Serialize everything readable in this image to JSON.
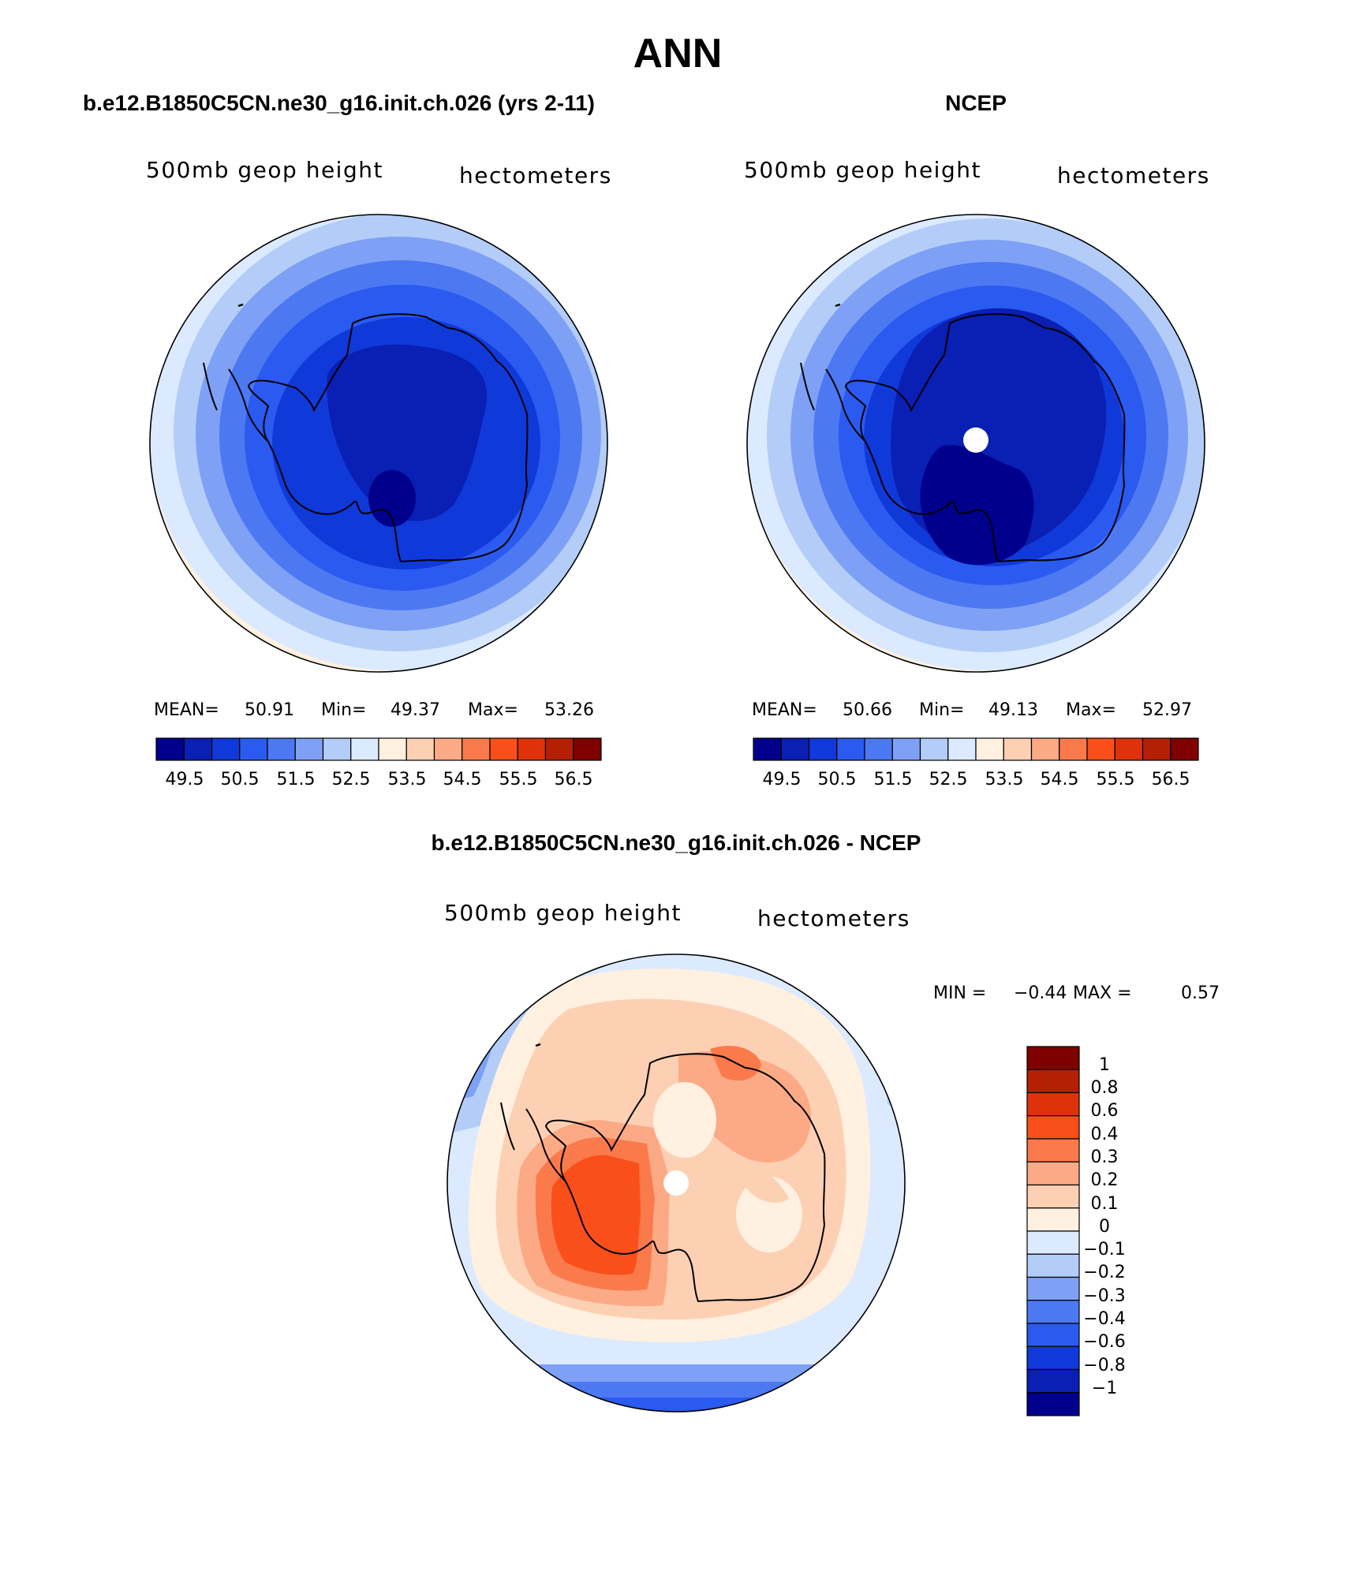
{
  "title": "ANN",
  "colors": {
    "abs_palette": [
      "#00008c",
      "#0a1fb3",
      "#1039d9",
      "#2a5af0",
      "#4c78f2",
      "#7ea1f5",
      "#b3cdf8",
      "#dceaff",
      "#fff0e0",
      "#fdd0b3",
      "#fca985",
      "#fa7a4b",
      "#fa4f1a",
      "#e0320a",
      "#b52005",
      "#800000"
    ],
    "diff_palette": [
      "#00008c",
      "#0a1fb3",
      "#1039d9",
      "#2a5af0",
      "#4c78f2",
      "#7ea1f5",
      "#b3cdf8",
      "#dceaff",
      "#fff0e0",
      "#fdd0b3",
      "#fca985",
      "#fa7a4b",
      "#fa4f1a",
      "#e0320a",
      "#b52005",
      "#800000"
    ]
  },
  "panels": [
    {
      "id": "model",
      "header": "b.e12.B1850C5CN.ne30_g16.init.ch.026 (yrs 2-11)",
      "variable": "500mb geop height",
      "units": "hectometers",
      "stats": {
        "mean_label": "MEAN=",
        "mean": "50.91",
        "min_label": "Min=",
        "min": "49.37",
        "max_label": "Max=",
        "max": "53.26"
      },
      "colorbar_labels": [
        "49.5",
        "50.5",
        "51.5",
        "52.5",
        "53.5",
        "54.5",
        "55.5",
        "56.5"
      ]
    },
    {
      "id": "obs",
      "header": "NCEP",
      "variable": "500mb geop height",
      "units": "hectometers",
      "stats": {
        "mean_label": "MEAN=",
        "mean": "50.66",
        "min_label": "Min=",
        "min": "49.13",
        "max_label": "Max=",
        "max": "52.97"
      },
      "colorbar_labels": [
        "49.5",
        "50.5",
        "51.5",
        "52.5",
        "53.5",
        "54.5",
        "55.5",
        "56.5"
      ]
    }
  ],
  "diff": {
    "header": "b.e12.B1850C5CN.ne30_g16.init.ch.026 - NCEP",
    "variable": "500mb geop height",
    "units": "hectometers",
    "minmax": {
      "min_label": "MIN =",
      "min": "−0.44",
      "max_label": "MAX =",
      "max": "0.57"
    },
    "colorbar_labels": [
      "1",
      "0.8",
      "0.6",
      "0.4",
      "0.3",
      "0.2",
      "0.1",
      "0",
      "−0.1",
      "−0.2",
      "−0.3",
      "−0.4",
      "−0.6",
      "−0.8",
      "−1"
    ]
  }
}
